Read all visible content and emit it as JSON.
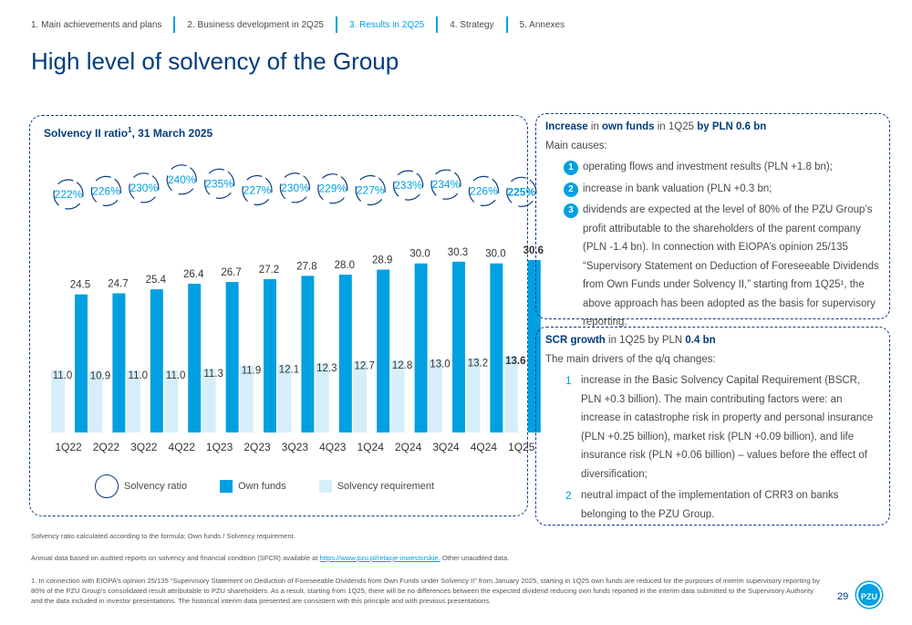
{
  "nav": {
    "items": [
      "1. Main achievements and plans",
      "2. Business development in 2Q25",
      "3. Results in 2Q25",
      "4. Strategy",
      "5. Annexes"
    ],
    "active_index": 2
  },
  "page_title": "High level of solvency of the Group",
  "chart_title": "Solvency II ratio",
  "chart_title_sup": "1",
  "chart_title_date": ", 31 March 2025",
  "colors": {
    "accent": "#00a0e1",
    "navy": "#003c7d",
    "own_funds": "#00a0e1",
    "requirement": "#d6eef9"
  },
  "chart_data": {
    "type": "bar",
    "categories": [
      "1Q22",
      "2Q22",
      "3Q22",
      "4Q22",
      "1Q23",
      "2Q23",
      "3Q23",
      "4Q23",
      "1Q24",
      "2Q24",
      "3Q24",
      "4Q24",
      "1Q25"
    ],
    "series": [
      {
        "name": "Own funds",
        "values": [
          24.5,
          24.7,
          25.4,
          26.4,
          26.7,
          27.2,
          27.8,
          28.0,
          28.9,
          30.0,
          30.3,
          30.0,
          30.6
        ]
      },
      {
        "name": "Solvency requirement",
        "values": [
          11.0,
          10.9,
          11.0,
          11.0,
          11.3,
          11.9,
          12.1,
          12.3,
          12.7,
          12.8,
          13.0,
          13.2,
          13.6
        ]
      }
    ],
    "ratio": {
      "name": "Solvency ratio",
      "labels": [
        "222%",
        "226%",
        "230%",
        "240%",
        "235%",
        "227%",
        "230%",
        "229%",
        "227%",
        "233%",
        "234%",
        "226%",
        "225%"
      ]
    },
    "highlight_last": true,
    "legend": [
      "Solvency ratio",
      "Own funds",
      "Solvency requirement"
    ]
  },
  "panel1": {
    "head_1": "Increase",
    "head_2": " in ",
    "head_3": "own funds",
    "head_4": " in 1Q25 ",
    "head_5": "by PLN 0.6 bn",
    "sub": "Main causes:",
    "items": [
      "operating flows and investment results (PLN +1.8 bn);",
      "increase in bank valuation (PLN +0.3 bn;",
      "dividends are expected at the level of 80% of the PZU Group’s profit attributable to the shareholders of the parent company (PLN -1.4 bn). In connection with EIOPA’s opinion 25/135 “Supervisory Statement on Deduction of Foreseeable Dividends from Own Funds under Solvency II,” starting from 1Q25¹, the above approach has been adopted as the basis for supervisory reporting."
    ]
  },
  "panel2": {
    "head_1": "SCR growth",
    "head_2": " in 1Q25 by PLN ",
    "head_3": "0.4 bn",
    "sub": "The main drivers of the q/q changes:",
    "items": [
      "increase in the Basic Solvency Capital Requirement (BSCR, PLN +0.3 billion). The main contributing factors were: an increase in catastrophe risk in property and personal insurance (PLN +0.25 billion), market risk (PLN +0.09 billion), and life insurance risk (PLN +0.06 billion) – values before the effect of diversification;",
      "neutral impact of the implementation of CRR3 on banks belonging to the PZU Group."
    ]
  },
  "footnotes": {
    "formula": "Solvency ratio calculated according to the formula: Own funds / Solvency requirement.",
    "annual_1": "Annual data based on audited reports on solvency and financial condition (SFCR) available at ",
    "annual_link": "https://www.pzu.pl/relacje-inwestorskie.",
    "annual_2": " Other unaudited data.",
    "note1": "1. In connection with EIOPA’s opinion 25/135 “Supervisory Statement on Deduction of Foreseeable Dividends from Own Funds under Solvency II” from January 2025, starting in 1Q25 own funds are reduced for the purposes of interim supervisory reporting by 80% of the PZU Group’s consolidated result attributable to PZU shareholders. As a result, starting from 1Q25, there will be no differences between the expected dividend reducing own funds reported in the interim data submitted to the Supervisory Authority and the data included in investor presentations. The historical interim data presented are consistent with this principle and with previous presentations."
  },
  "page_number": "29",
  "logo_text": "PZU"
}
